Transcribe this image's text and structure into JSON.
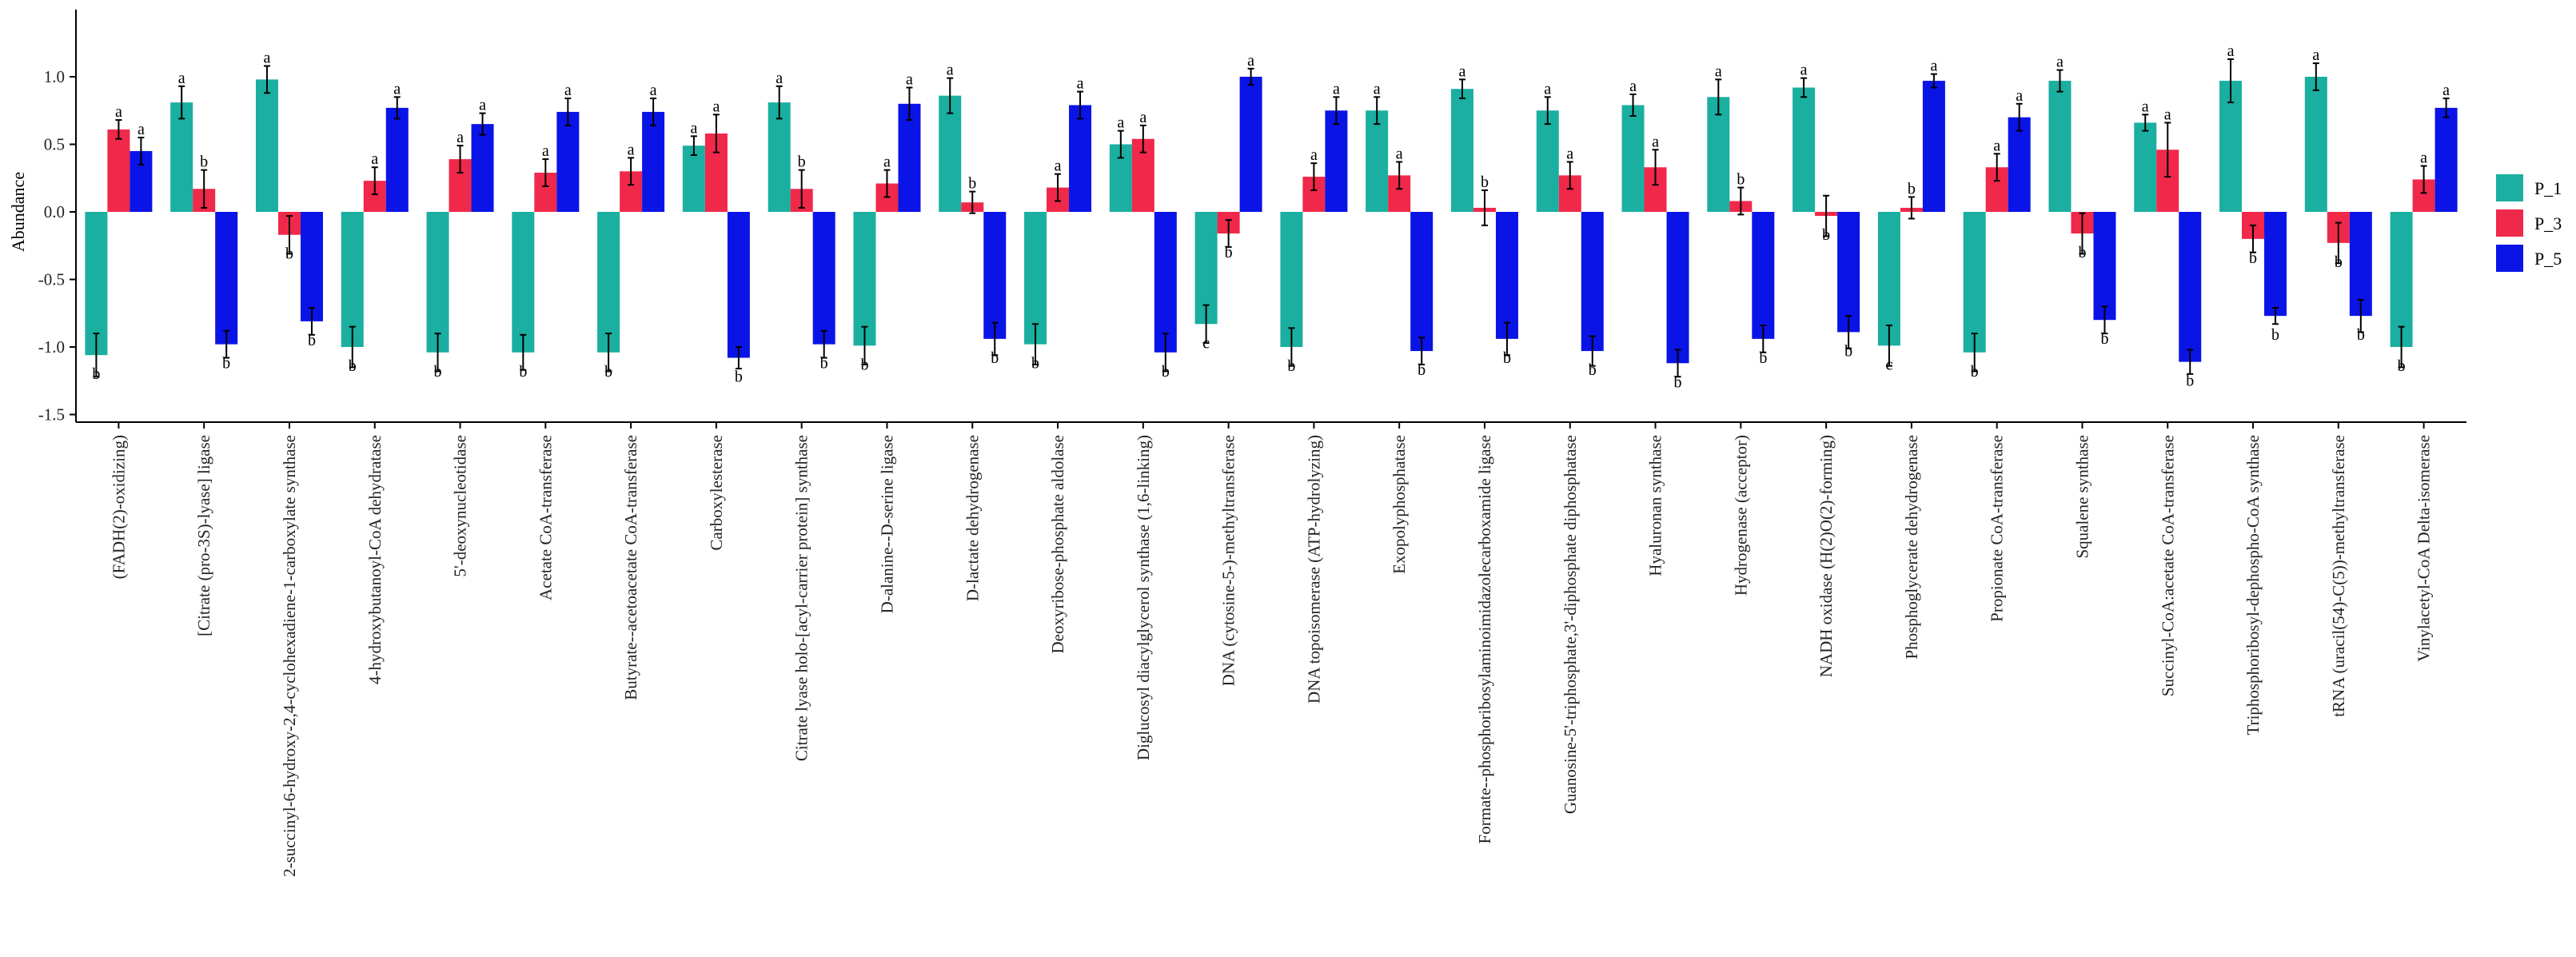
{
  "chart_data": {
    "type": "bar",
    "title": "",
    "xlabel": "",
    "ylabel": "Abundance",
    "ylim": [
      -1.5,
      1.25
    ],
    "yticks": [
      -1.5,
      -1.0,
      -0.5,
      0.0,
      0.5,
      1.0
    ],
    "ytick_labels": [
      "-1.5",
      "-1.0",
      "-0.5",
      "0.0",
      "0.5",
      "1.0"
    ],
    "grid": false,
    "legend_position": "right",
    "categories": [
      "(FADH(2)-oxidizing)",
      "[Citrate (pro-3S)-lyase] ligase",
      "2-succinyl-6-hydroxy-2,4-cyclohexadiene-1-carboxylate synthase",
      "4-hydroxybutanoyl-CoA dehydratase",
      "5'-deoxynucleotidase",
      "Acetate CoA-transferase",
      "Butyrate--acetoacetate CoA-transferase",
      "Carboxylesterase",
      "Citrate lyase holo-[acyl-carrier protein] synthase",
      "D-alanine--D-serine ligase",
      "D-lactate dehydrogenase",
      "Deoxyribose-phosphate aldolase",
      "Diglucosyl diacylglycerol synthase (1,6-linking)",
      "DNA (cytosine-5-)-methyltransferase",
      "DNA topoisomerase (ATP-hydrolyzing)",
      "Exopolyphosphatase",
      "Formate--phosphoribosylaminoimidazolecarboxamide ligase",
      "Guanosine-5'-triphosphate,3'-diphosphate diphosphatase",
      "Hyaluronan synthase",
      "Hydrogenase (acceptor)",
      "NADH oxidase (H(2)O(2)-forming)",
      "Phosphoglycerate dehydrogenase",
      "Propionate CoA-transferase",
      "Squalene synthase",
      "Succinyl-CoA:acetate CoA-transferase",
      "Triphosphoribosyl-dephospho-CoA synthase",
      "tRNA (uracil(54)-C(5))-methyltransferase",
      "Vinylacetyl-CoA Delta-isomerase"
    ],
    "series": [
      {
        "name": "P_1",
        "color": "#1aafa0",
        "values": [
          -1.06,
          0.81,
          0.98,
          -1.0,
          -1.04,
          -1.04,
          -1.04,
          0.49,
          0.81,
          -0.99,
          0.86,
          -0.98,
          0.5,
          -0.83,
          -1.0,
          0.75,
          0.91,
          0.75,
          0.79,
          0.85,
          0.92,
          -0.99,
          -1.04,
          0.97,
          0.66,
          0.97,
          1.0,
          -1.0
        ],
        "errors": [
          0.16,
          0.12,
          0.1,
          0.15,
          0.14,
          0.13,
          0.14,
          0.07,
          0.12,
          0.14,
          0.13,
          0.15,
          0.1,
          0.14,
          0.14,
          0.1,
          0.07,
          0.1,
          0.08,
          0.13,
          0.07,
          0.15,
          0.14,
          0.08,
          0.06,
          0.16,
          0.1,
          0.15
        ],
        "labels": [
          "b",
          "a",
          "a",
          "b",
          "b",
          "b",
          "b",
          "a",
          "a",
          "b",
          "a",
          "b",
          "a",
          "c",
          "b",
          "a",
          "a",
          "a",
          "a",
          "a",
          "a",
          "c",
          "b",
          "a",
          "a",
          "a",
          "a",
          "b"
        ]
      },
      {
        "name": "P_3",
        "color": "#f0284a",
        "values": [
          0.61,
          0.17,
          -0.17,
          0.23,
          0.39,
          0.29,
          0.3,
          0.58,
          0.17,
          0.21,
          0.07,
          0.18,
          0.54,
          -0.16,
          0.26,
          0.27,
          0.03,
          0.27,
          0.33,
          0.08,
          -0.03,
          0.03,
          0.33,
          -0.16,
          0.46,
          -0.2,
          -0.23,
          0.24
        ],
        "errors": [
          0.07,
          0.14,
          0.14,
          0.1,
          0.1,
          0.1,
          0.1,
          0.14,
          0.14,
          0.1,
          0.08,
          0.1,
          0.1,
          0.1,
          0.1,
          0.1,
          0.13,
          0.1,
          0.13,
          0.1,
          0.15,
          0.08,
          0.1,
          0.15,
          0.2,
          0.1,
          0.15,
          0.1
        ],
        "labels": [
          "a",
          "b",
          "b",
          "a",
          "a",
          "a",
          "a",
          "a",
          "b",
          "a",
          "b",
          "a",
          "a",
          "b",
          "a",
          "a",
          "b",
          "a",
          "a",
          "b",
          "b",
          "b",
          "a",
          "b",
          "a",
          "b",
          "b",
          "a"
        ]
      },
      {
        "name": "P_5",
        "color": "#0a14e6",
        "values": [
          0.45,
          -0.98,
          -0.81,
          0.77,
          0.65,
          0.74,
          0.74,
          -1.08,
          -0.98,
          0.8,
          -0.94,
          0.79,
          -1.04,
          1.0,
          0.75,
          -1.03,
          -0.94,
          -1.03,
          -1.12,
          -0.94,
          -0.89,
          0.97,
          0.7,
          -0.8,
          -1.11,
          -0.77,
          -0.77,
          0.77
        ],
        "errors": [
          0.1,
          0.1,
          0.1,
          0.08,
          0.08,
          0.1,
          0.1,
          0.08,
          0.1,
          0.12,
          0.12,
          0.1,
          0.14,
          0.06,
          0.1,
          0.1,
          0.12,
          0.11,
          0.1,
          0.1,
          0.12,
          0.05,
          0.1,
          0.1,
          0.09,
          0.06,
          0.12,
          0.07
        ],
        "labels": [
          "a",
          "b",
          "b",
          "a",
          "a",
          "a",
          "a",
          "b",
          "b",
          "a",
          "b",
          "a",
          "b",
          "a",
          "a",
          "b",
          "b",
          "b",
          "b",
          "b",
          "b",
          "a",
          "a",
          "b",
          "b",
          "b",
          "b",
          "a"
        ]
      }
    ]
  }
}
